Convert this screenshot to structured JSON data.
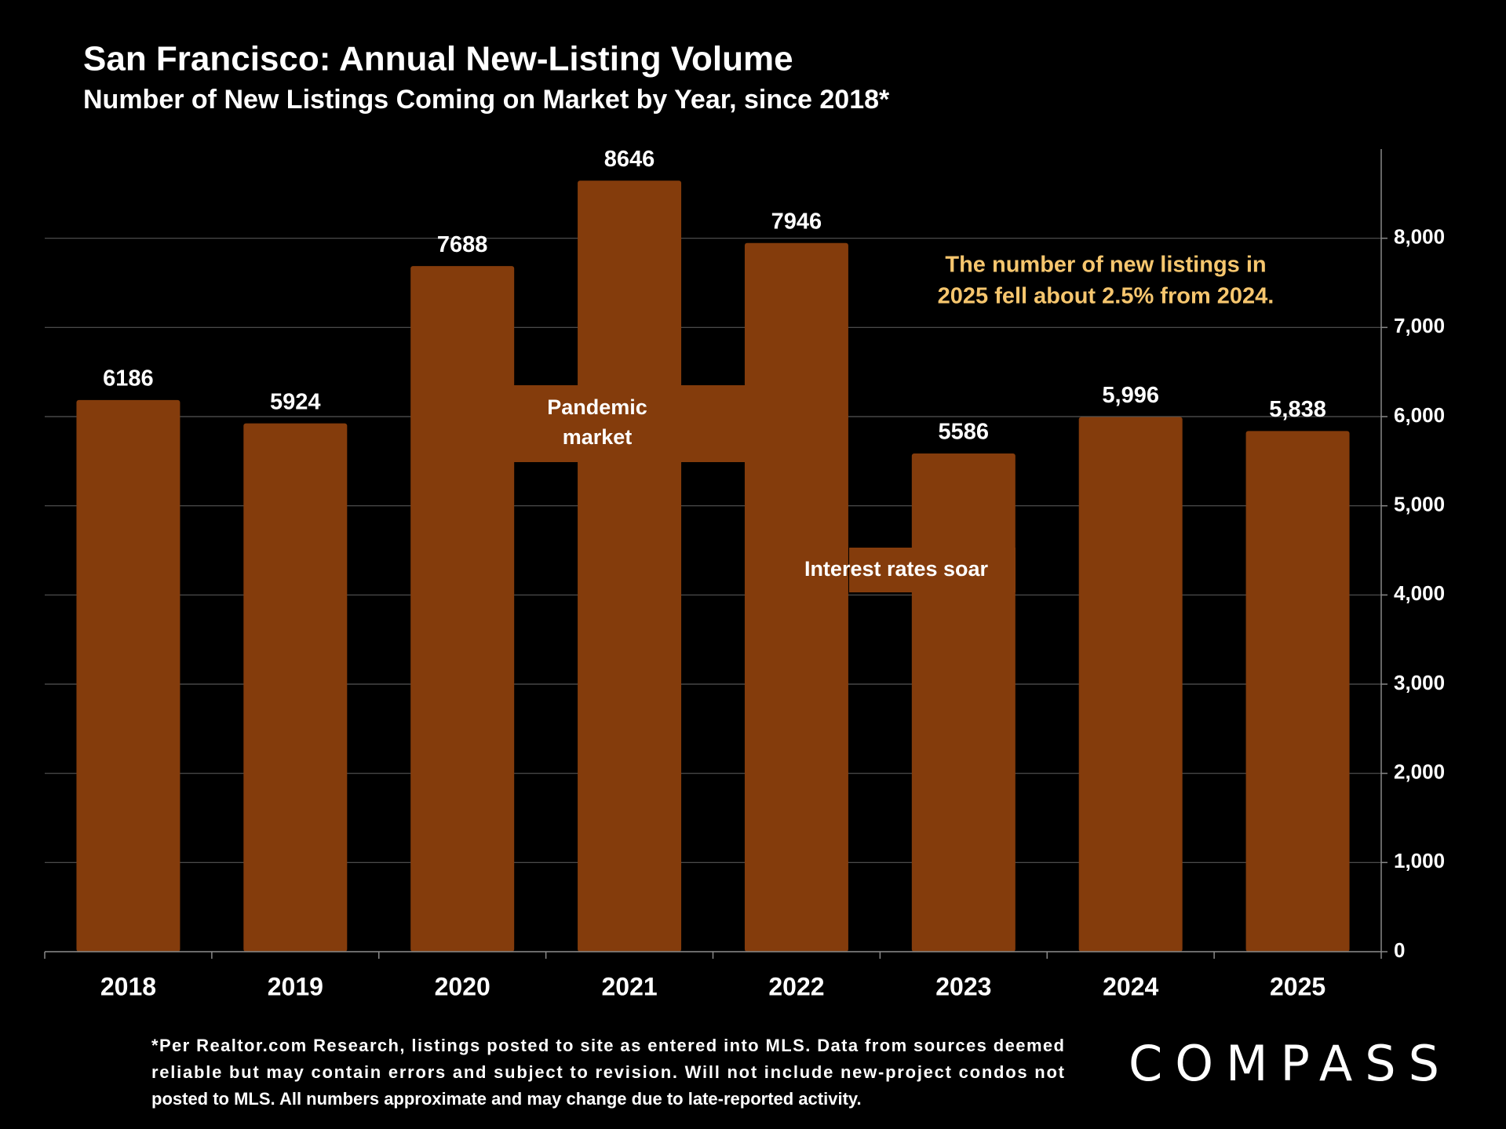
{
  "chart_data": {
    "type": "bar",
    "title": "San Francisco: Annual New-Listing Volume",
    "subtitle": "Number of New Listings Coming on Market by Year, since 2018*",
    "categories": [
      "2018",
      "2019",
      "2020",
      "2021",
      "2022",
      "2023",
      "2024",
      "2025"
    ],
    "values": [
      6186,
      5924,
      7688,
      8646,
      7946,
      5586,
      5996,
      5838
    ],
    "value_labels": [
      "6186",
      "5924",
      "7688",
      "8646",
      "7946",
      "5586",
      "5,996",
      "5,838"
    ],
    "color": "#843c0c",
    "ylim": [
      0,
      9000
    ],
    "yticks": [
      0,
      {
        "value": 1000,
        "label": "1,000"
      },
      {
        "value": 2000,
        "label": "2,000"
      },
      {
        "value": 3000,
        "label": "3,000"
      },
      {
        "value": 4000,
        "label": "4,000"
      },
      {
        "value": 5000,
        "label": "5,000"
      },
      {
        "value": 6000,
        "label": "6,000"
      },
      {
        "value": 7000,
        "label": "7,000"
      },
      {
        "value": 8000,
        "label": "8,000"
      }
    ],
    "grid": true,
    "annotations": {
      "pandemic": [
        "Pandemic",
        "market"
      ],
      "rates": "Interest rates soar",
      "note": [
        "The number of new listings in",
        "2025 fell about 2.5% from 2024."
      ]
    },
    "footnote": [
      "*Per Realtor.com Research, listings posted to site as entered into MLS. Data from sources deemed",
      "reliable but may contain errors and subject to revision. Will not include new-project condos not",
      "posted to MLS. All numbers approximate and may change due to late-reported activity."
    ],
    "logo": "COMPASS"
  }
}
